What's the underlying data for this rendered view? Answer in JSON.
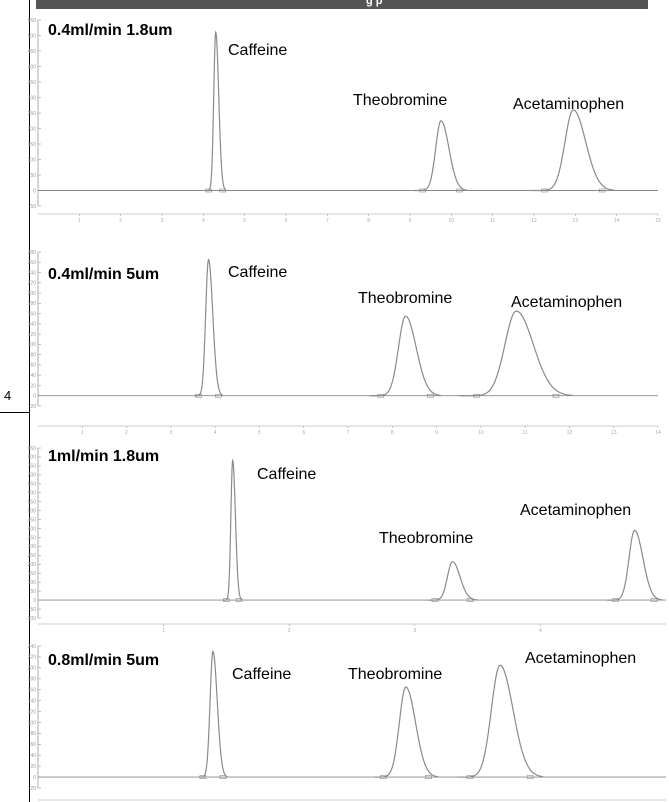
{
  "banner": {
    "text": "g     p"
  },
  "side_digit": "4",
  "colors": {
    "trace": "#8a8a8a",
    "frame": "#000000",
    "banner": "#555555"
  },
  "chart_data": [
    {
      "type": "line",
      "condition_label": "0.4ml/min 1.8um",
      "y_ticks": [
        "550",
        "500",
        "450",
        "400",
        "350",
        "300",
        "250",
        "200",
        "150",
        "100",
        "50",
        "0",
        "-50"
      ],
      "ylim": [
        -50,
        550
      ],
      "x_ticks": [
        "1",
        "2",
        "3",
        "4",
        "5",
        "6",
        "7",
        "8",
        "9",
        "10",
        "11",
        "12",
        "13",
        "14",
        "15"
      ],
      "xlim": [
        0,
        15
      ],
      "peaks": [
        {
          "name": "Caffeine",
          "rt": 4.3,
          "height": 510,
          "width": 0.06
        },
        {
          "name": "Theobromine",
          "rt": 9.75,
          "height": 225,
          "width": 0.16
        },
        {
          "name": "Acetaminophen",
          "rt": 12.95,
          "height": 260,
          "width": 0.25
        }
      ]
    },
    {
      "type": "line",
      "condition_label": "0.4ml/min 5um",
      "y_ticks": [
        "280",
        "260",
        "240",
        "220",
        "200",
        "180",
        "160",
        "140",
        "120",
        "100",
        "80",
        "60",
        "40",
        "20",
        "0",
        "-20"
      ],
      "ylim": [
        -20,
        280
      ],
      "x_ticks": [
        "1",
        "2",
        "3",
        "4",
        "5",
        "6",
        "7",
        "8",
        "9",
        "10",
        "11",
        "12",
        "13",
        "14"
      ],
      "xlim": [
        0,
        14
      ],
      "peaks": [
        {
          "name": "Caffeine",
          "rt": 3.85,
          "height": 265,
          "width": 0.08
        },
        {
          "name": "Theobromine",
          "rt": 8.3,
          "height": 155,
          "width": 0.2
        },
        {
          "name": "Acetaminophen",
          "rt": 10.8,
          "height": 165,
          "width": 0.32
        }
      ]
    },
    {
      "type": "line",
      "condition_label": "1ml/min 1.8um",
      "y_ticks": [
        "850",
        "800",
        "750",
        "700",
        "650",
        "600",
        "550",
        "500",
        "450",
        "400",
        "350",
        "300",
        "250",
        "200",
        "150",
        "100",
        "50",
        "0",
        "-50",
        "-100"
      ],
      "ylim": [
        -100,
        850
      ],
      "x_ticks": [
        "1",
        "2",
        "3",
        "4"
      ],
      "xlim": [
        0,
        5
      ],
      "peaks": [
        {
          "name": "Caffeine",
          "rt": 1.55,
          "height": 780,
          "width": 0.018
        },
        {
          "name": "Theobromine",
          "rt": 3.3,
          "height": 215,
          "width": 0.05
        },
        {
          "name": "Acetaminophen",
          "rt": 4.75,
          "height": 390,
          "width": 0.055
        }
      ]
    },
    {
      "type": "line",
      "condition_label": "0.8ml/min 5um",
      "y_ticks": [
        "240",
        "220",
        "200",
        "180",
        "160",
        "140",
        "120",
        "100",
        "80",
        "60",
        "40",
        "20",
        "0",
        "-20"
      ],
      "ylim": [
        -20,
        240
      ],
      "x_ticks": [],
      "xlim": [
        0,
        7
      ],
      "peaks": [
        {
          "name": "Caffeine",
          "rt": 1.95,
          "height": 230,
          "width": 0.04
        },
        {
          "name": "Theobromine",
          "rt": 4.1,
          "height": 165,
          "width": 0.09
        },
        {
          "name": "Acetaminophen",
          "rt": 5.15,
          "height": 205,
          "width": 0.12
        }
      ]
    }
  ]
}
